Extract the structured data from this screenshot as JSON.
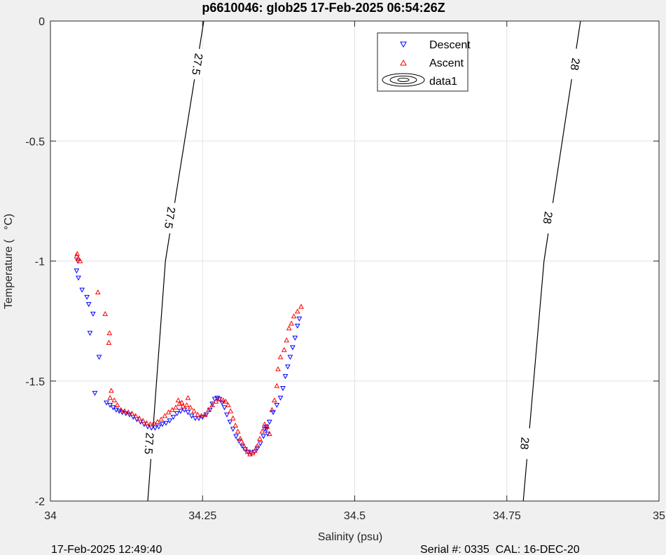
{
  "chart_data": {
    "type": "scatter",
    "title": "p6610046: glob25 17-Feb-2025 06:54:26Z",
    "xlabel": "Salinity (psu)",
    "ylabel": "Temperature (   °C)",
    "xlim": [
      34,
      35
    ],
    "ylim": [
      -2,
      0
    ],
    "x_ticks": [
      34,
      34.25,
      34.5,
      34.75,
      35
    ],
    "x_tick_labels": [
      "34",
      "34.25",
      "34.5",
      "34.75",
      "35"
    ],
    "y_ticks": [
      0,
      -0.5,
      -1,
      -1.5,
      -2
    ],
    "y_tick_labels": [
      "0",
      "-0.5",
      "-1",
      "-1.5",
      "-2"
    ],
    "grid": true,
    "legend_position": "top-center",
    "legend": [
      "Descent",
      "Ascent",
      "data1"
    ],
    "footer_left": "17-Feb-2025 12:49:40",
    "footer_right": "Serial #: 0335  CAL: 16-DEC-20",
    "series": [
      {
        "name": "Descent",
        "marker": "triangle-down",
        "color": "#0000ff",
        "points": [
          [
            34.045,
            -1.0
          ],
          [
            34.043,
            -1.04
          ],
          [
            34.046,
            -1.07
          ],
          [
            34.052,
            -1.12
          ],
          [
            34.06,
            -1.15
          ],
          [
            34.063,
            -1.18
          ],
          [
            34.07,
            -1.22
          ],
          [
            34.065,
            -1.3
          ],
          [
            34.08,
            -1.4
          ],
          [
            34.073,
            -1.55
          ],
          [
            34.092,
            -1.59
          ],
          [
            34.098,
            -1.6
          ],
          [
            34.103,
            -1.61
          ],
          [
            34.108,
            -1.62
          ],
          [
            34.113,
            -1.625
          ],
          [
            34.118,
            -1.63
          ],
          [
            34.124,
            -1.635
          ],
          [
            34.13,
            -1.64
          ],
          [
            34.136,
            -1.65
          ],
          [
            34.142,
            -1.66
          ],
          [
            34.148,
            -1.67
          ],
          [
            34.154,
            -1.68
          ],
          [
            34.16,
            -1.69
          ],
          [
            34.166,
            -1.695
          ],
          [
            34.172,
            -1.695
          ],
          [
            34.178,
            -1.69
          ],
          [
            34.184,
            -1.68
          ],
          [
            34.19,
            -1.675
          ],
          [
            34.196,
            -1.665
          ],
          [
            34.202,
            -1.65
          ],
          [
            34.208,
            -1.635
          ],
          [
            34.214,
            -1.625
          ],
          [
            34.22,
            -1.62
          ],
          [
            34.226,
            -1.63
          ],
          [
            34.232,
            -1.645
          ],
          [
            34.238,
            -1.655
          ],
          [
            34.244,
            -1.655
          ],
          [
            34.25,
            -1.65
          ],
          [
            34.256,
            -1.64
          ],
          [
            34.262,
            -1.62
          ],
          [
            34.266,
            -1.595
          ],
          [
            34.27,
            -1.575
          ],
          [
            34.274,
            -1.57
          ],
          [
            34.278,
            -1.575
          ],
          [
            34.282,
            -1.59
          ],
          [
            34.286,
            -1.61
          ],
          [
            34.29,
            -1.64
          ],
          [
            34.295,
            -1.67
          ],
          [
            34.3,
            -1.7
          ],
          [
            34.305,
            -1.73
          ],
          [
            34.31,
            -1.75
          ],
          [
            34.315,
            -1.77
          ],
          [
            34.32,
            -1.785
          ],
          [
            34.325,
            -1.795
          ],
          [
            34.33,
            -1.8
          ],
          [
            34.335,
            -1.795
          ],
          [
            34.34,
            -1.78
          ],
          [
            34.345,
            -1.76
          ],
          [
            34.35,
            -1.73
          ],
          [
            34.355,
            -1.7
          ],
          [
            34.36,
            -1.67
          ],
          [
            34.366,
            -1.63
          ],
          [
            34.372,
            -1.6
          ],
          [
            34.378,
            -1.57
          ],
          [
            34.382,
            -1.53
          ],
          [
            34.386,
            -1.48
          ],
          [
            34.39,
            -1.44
          ],
          [
            34.394,
            -1.4
          ],
          [
            34.398,
            -1.36
          ],
          [
            34.402,
            -1.32
          ],
          [
            34.406,
            -1.27
          ],
          [
            34.409,
            -1.24
          ],
          [
            34.355,
            -1.69
          ],
          [
            34.357,
            -1.72
          ],
          [
            34.352,
            -1.7
          ]
        ]
      },
      {
        "name": "Ascent",
        "marker": "triangle-up",
        "color": "#ff0000",
        "points": [
          [
            34.043,
            -0.98
          ],
          [
            34.046,
            -0.99
          ],
          [
            34.049,
            -1.0
          ],
          [
            34.044,
            -0.97
          ],
          [
            34.078,
            -1.13
          ],
          [
            34.09,
            -1.22
          ],
          [
            34.097,
            -1.3
          ],
          [
            34.096,
            -1.34
          ],
          [
            34.1,
            -1.54
          ],
          [
            34.098,
            -1.57
          ],
          [
            34.105,
            -1.58
          ],
          [
            34.11,
            -1.6
          ],
          [
            34.116,
            -1.62
          ],
          [
            34.122,
            -1.625
          ],
          [
            34.128,
            -1.63
          ],
          [
            34.134,
            -1.635
          ],
          [
            34.14,
            -1.645
          ],
          [
            34.146,
            -1.655
          ],
          [
            34.152,
            -1.665
          ],
          [
            34.158,
            -1.675
          ],
          [
            34.164,
            -1.68
          ],
          [
            34.17,
            -1.675
          ],
          [
            34.176,
            -1.67
          ],
          [
            34.182,
            -1.66
          ],
          [
            34.188,
            -1.645
          ],
          [
            34.194,
            -1.63
          ],
          [
            34.2,
            -1.62
          ],
          [
            34.206,
            -1.61
          ],
          [
            34.212,
            -1.595
          ],
          [
            34.218,
            -1.605
          ],
          [
            34.224,
            -1.6
          ],
          [
            34.23,
            -1.61
          ],
          [
            34.236,
            -1.625
          ],
          [
            34.242,
            -1.64
          ],
          [
            34.248,
            -1.645
          ],
          [
            34.254,
            -1.64
          ],
          [
            34.26,
            -1.62
          ],
          [
            34.266,
            -1.6
          ],
          [
            34.272,
            -1.585
          ],
          [
            34.278,
            -1.575
          ],
          [
            34.284,
            -1.58
          ],
          [
            34.288,
            -1.585
          ],
          [
            34.292,
            -1.6
          ],
          [
            34.296,
            -1.625
          ],
          [
            34.3,
            -1.655
          ],
          [
            34.304,
            -1.685
          ],
          [
            34.308,
            -1.71
          ],
          [
            34.312,
            -1.74
          ],
          [
            34.316,
            -1.76
          ],
          [
            34.32,
            -1.78
          ],
          [
            34.324,
            -1.795
          ],
          [
            34.328,
            -1.805
          ],
          [
            34.332,
            -1.8
          ],
          [
            34.336,
            -1.79
          ],
          [
            34.34,
            -1.77
          ],
          [
            34.344,
            -1.74
          ],
          [
            34.348,
            -1.71
          ],
          [
            34.352,
            -1.68
          ],
          [
            34.356,
            -1.69
          ],
          [
            34.36,
            -1.72
          ],
          [
            34.364,
            -1.62
          ],
          [
            34.368,
            -1.58
          ],
          [
            34.372,
            -1.52
          ],
          [
            34.374,
            -1.45
          ],
          [
            34.378,
            -1.4
          ],
          [
            34.384,
            -1.37
          ],
          [
            34.388,
            -1.33
          ],
          [
            34.392,
            -1.28
          ],
          [
            34.396,
            -1.26
          ],
          [
            34.4,
            -1.23
          ],
          [
            34.406,
            -1.21
          ],
          [
            34.412,
            -1.19
          ],
          [
            34.21,
            -1.58
          ],
          [
            34.216,
            -1.59
          ],
          [
            34.226,
            -1.57
          ]
        ]
      }
    ],
    "contours": [
      {
        "name": "data1",
        "level_label": "27.5",
        "points": [
          [
            34.252,
            0
          ],
          [
            34.189,
            -1
          ],
          [
            34.16,
            -2
          ]
        ],
        "label_positions": [
          [
            34.242,
            -0.18
          ],
          [
            34.197,
            -0.82
          ],
          [
            34.163,
            -1.76
          ]
        ]
      },
      {
        "name": "data1",
        "level_label": "28",
        "points": [
          [
            34.871,
            0
          ],
          [
            34.811,
            -1
          ],
          [
            34.777,
            -2
          ]
        ],
        "label_positions": [
          [
            34.863,
            -0.18
          ],
          [
            34.818,
            -0.82
          ],
          [
            34.78,
            -1.76
          ]
        ]
      }
    ]
  }
}
